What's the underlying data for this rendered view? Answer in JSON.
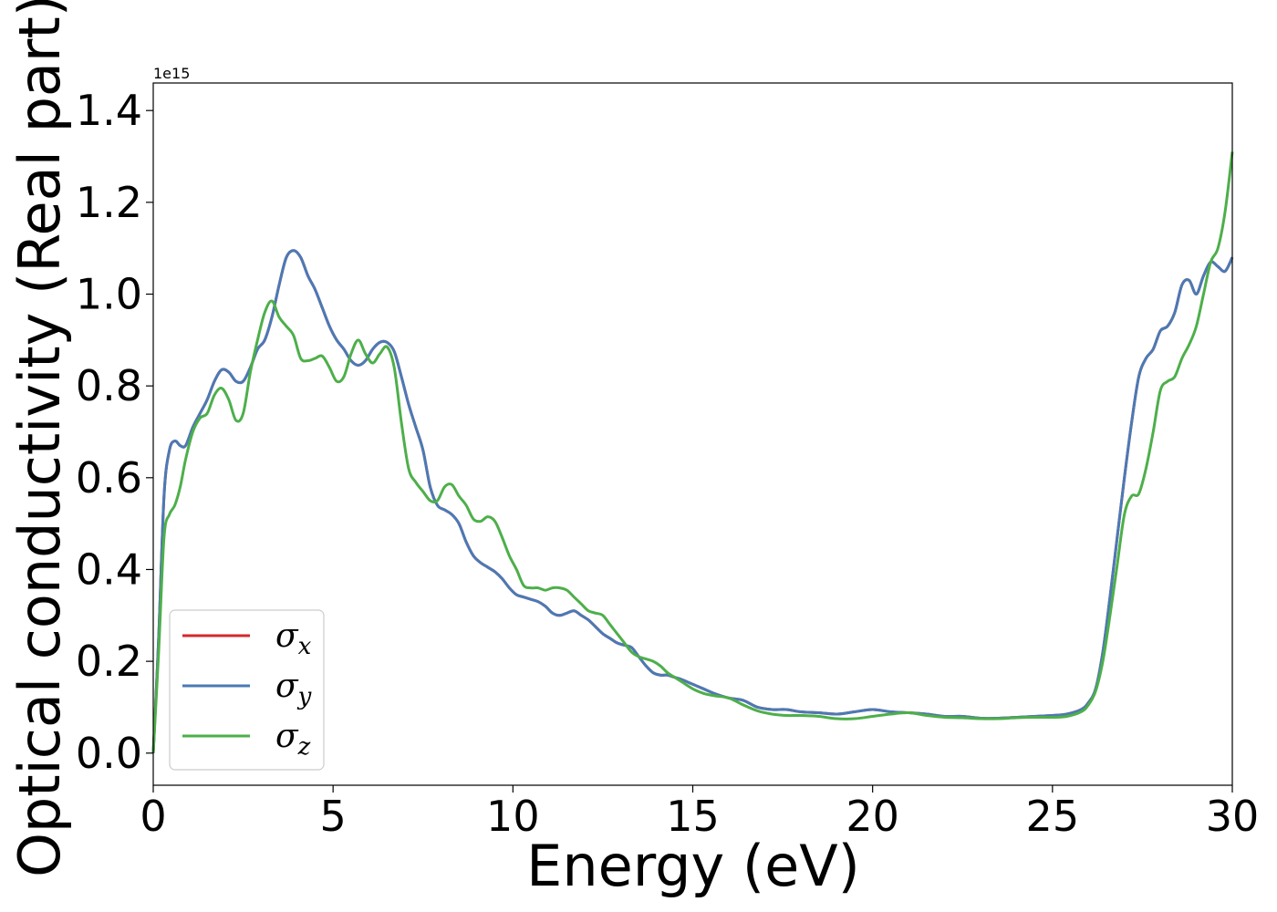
{
  "chart_data": {
    "type": "line",
    "xlabel": "Energy (eV)",
    "ylabel": "Optical conductivity (Real part)",
    "y_offset_label": "1e15",
    "y_scale_factor": 1000000000000000.0,
    "xlim": [
      0,
      30
    ],
    "ylim": [
      -0.07,
      1.46
    ],
    "x_ticks": [
      0,
      5,
      10,
      15,
      20,
      25,
      30
    ],
    "x_tick_labels": [
      "0",
      "5",
      "10",
      "15",
      "20",
      "25",
      "30"
    ],
    "y_ticks": [
      0.0,
      0.2,
      0.4,
      0.6,
      0.8,
      1.0,
      1.2,
      1.4
    ],
    "y_tick_labels": [
      "0.0",
      "0.2",
      "0.4",
      "0.6",
      "0.8",
      "1.0",
      "1.2",
      "1.4"
    ],
    "grid": false,
    "legend_position": "lower-left",
    "series": [
      {
        "name": "σx",
        "legend_symbol": "σ",
        "legend_subscript": "x",
        "color": "#d62728",
        "x": [
          0,
          0.15,
          0.3,
          0.45,
          0.6,
          0.75,
          0.9,
          1.1,
          1.3,
          1.5,
          1.7,
          1.9,
          2.1,
          2.3,
          2.5,
          2.7,
          2.9,
          3.1,
          3.3,
          3.5,
          3.7,
          3.9,
          4.1,
          4.3,
          4.5,
          4.7,
          4.9,
          5.1,
          5.3,
          5.5,
          5.7,
          5.9,
          6.1,
          6.3,
          6.5,
          6.7,
          6.9,
          7.1,
          7.3,
          7.5,
          7.7,
          7.9,
          8.1,
          8.3,
          8.5,
          8.7,
          8.9,
          9.1,
          9.3,
          9.5,
          9.7,
          9.9,
          10.1,
          10.3,
          10.5,
          10.7,
          10.9,
          11.1,
          11.3,
          11.5,
          11.7,
          11.9,
          12.1,
          12.3,
          12.5,
          12.7,
          12.9,
          13.1,
          13.3,
          13.5,
          13.7,
          13.9,
          14.1,
          14.3,
          14.5,
          14.7,
          15.0,
          15.3,
          15.6,
          16.0,
          16.4,
          16.8,
          17.2,
          17.6,
          18.0,
          18.5,
          19.0,
          19.5,
          20.0,
          20.5,
          21.0,
          21.5,
          22.0,
          22.5,
          23.0,
          23.5,
          24.0,
          24.5,
          25.0,
          25.4,
          25.8,
          26.0,
          26.2,
          26.4,
          26.6,
          26.8,
          27.0,
          27.2,
          27.4,
          27.6,
          27.8,
          28.0,
          28.2,
          28.4,
          28.6,
          28.8,
          29.0,
          29.2,
          29.4,
          29.6,
          29.8,
          30.0
        ],
        "y": [
          0.0,
          0.25,
          0.56,
          0.66,
          0.68,
          0.67,
          0.67,
          0.71,
          0.74,
          0.77,
          0.81,
          0.835,
          0.83,
          0.81,
          0.81,
          0.84,
          0.88,
          0.9,
          0.95,
          1.02,
          1.08,
          1.095,
          1.08,
          1.04,
          1.01,
          0.97,
          0.93,
          0.9,
          0.88,
          0.855,
          0.845,
          0.855,
          0.88,
          0.895,
          0.895,
          0.875,
          0.82,
          0.76,
          0.71,
          0.66,
          0.58,
          0.54,
          0.53,
          0.52,
          0.5,
          0.46,
          0.43,
          0.415,
          0.405,
          0.395,
          0.38,
          0.36,
          0.345,
          0.34,
          0.335,
          0.33,
          0.32,
          0.305,
          0.3,
          0.305,
          0.31,
          0.3,
          0.29,
          0.275,
          0.26,
          0.25,
          0.24,
          0.235,
          0.23,
          0.21,
          0.19,
          0.175,
          0.17,
          0.17,
          0.165,
          0.16,
          0.15,
          0.14,
          0.13,
          0.12,
          0.115,
          0.1,
          0.095,
          0.095,
          0.09,
          0.088,
          0.085,
          0.09,
          0.095,
          0.09,
          0.088,
          0.085,
          0.08,
          0.08,
          0.076,
          0.076,
          0.078,
          0.08,
          0.082,
          0.085,
          0.095,
          0.11,
          0.14,
          0.22,
          0.34,
          0.47,
          0.6,
          0.72,
          0.82,
          0.86,
          0.88,
          0.92,
          0.93,
          0.96,
          1.02,
          1.03,
          1.0,
          1.04,
          1.07,
          1.06,
          1.05,
          1.08
        ]
      },
      {
        "name": "σy",
        "legend_symbol": "σ",
        "legend_subscript": "y",
        "color": "#4a7ab5",
        "x": [
          0,
          0.15,
          0.3,
          0.45,
          0.6,
          0.75,
          0.9,
          1.1,
          1.3,
          1.5,
          1.7,
          1.9,
          2.1,
          2.3,
          2.5,
          2.7,
          2.9,
          3.1,
          3.3,
          3.5,
          3.7,
          3.9,
          4.1,
          4.3,
          4.5,
          4.7,
          4.9,
          5.1,
          5.3,
          5.5,
          5.7,
          5.9,
          6.1,
          6.3,
          6.5,
          6.7,
          6.9,
          7.1,
          7.3,
          7.5,
          7.7,
          7.9,
          8.1,
          8.3,
          8.5,
          8.7,
          8.9,
          9.1,
          9.3,
          9.5,
          9.7,
          9.9,
          10.1,
          10.3,
          10.5,
          10.7,
          10.9,
          11.1,
          11.3,
          11.5,
          11.7,
          11.9,
          12.1,
          12.3,
          12.5,
          12.7,
          12.9,
          13.1,
          13.3,
          13.5,
          13.7,
          13.9,
          14.1,
          14.3,
          14.5,
          14.7,
          15.0,
          15.3,
          15.6,
          16.0,
          16.4,
          16.8,
          17.2,
          17.6,
          18.0,
          18.5,
          19.0,
          19.5,
          20.0,
          20.5,
          21.0,
          21.5,
          22.0,
          22.5,
          23.0,
          23.5,
          24.0,
          24.5,
          25.0,
          25.4,
          25.8,
          26.0,
          26.2,
          26.4,
          26.6,
          26.8,
          27.0,
          27.2,
          27.4,
          27.6,
          27.8,
          28.0,
          28.2,
          28.4,
          28.6,
          28.8,
          29.0,
          29.2,
          29.4,
          29.6,
          29.8,
          30.0
        ],
        "y": [
          0.0,
          0.25,
          0.56,
          0.66,
          0.68,
          0.67,
          0.67,
          0.71,
          0.74,
          0.77,
          0.81,
          0.835,
          0.83,
          0.81,
          0.81,
          0.84,
          0.88,
          0.9,
          0.95,
          1.02,
          1.08,
          1.095,
          1.08,
          1.04,
          1.01,
          0.97,
          0.93,
          0.9,
          0.88,
          0.855,
          0.845,
          0.855,
          0.88,
          0.895,
          0.895,
          0.875,
          0.82,
          0.76,
          0.71,
          0.66,
          0.58,
          0.54,
          0.53,
          0.52,
          0.5,
          0.46,
          0.43,
          0.415,
          0.405,
          0.395,
          0.38,
          0.36,
          0.345,
          0.34,
          0.335,
          0.33,
          0.32,
          0.305,
          0.3,
          0.305,
          0.31,
          0.3,
          0.29,
          0.275,
          0.26,
          0.25,
          0.24,
          0.235,
          0.23,
          0.21,
          0.19,
          0.175,
          0.17,
          0.17,
          0.165,
          0.16,
          0.15,
          0.14,
          0.13,
          0.12,
          0.115,
          0.1,
          0.095,
          0.095,
          0.09,
          0.088,
          0.085,
          0.09,
          0.095,
          0.09,
          0.088,
          0.085,
          0.08,
          0.08,
          0.076,
          0.076,
          0.078,
          0.08,
          0.082,
          0.085,
          0.095,
          0.11,
          0.14,
          0.22,
          0.34,
          0.47,
          0.6,
          0.72,
          0.82,
          0.86,
          0.88,
          0.92,
          0.93,
          0.96,
          1.02,
          1.03,
          1.0,
          1.04,
          1.07,
          1.06,
          1.05,
          1.08
        ]
      },
      {
        "name": "σz",
        "legend_symbol": "σ",
        "legend_subscript": "z",
        "color": "#4daf4a",
        "x": [
          0,
          0.15,
          0.3,
          0.45,
          0.6,
          0.75,
          0.9,
          1.1,
          1.3,
          1.5,
          1.7,
          1.9,
          2.1,
          2.3,
          2.5,
          2.7,
          2.9,
          3.1,
          3.3,
          3.5,
          3.7,
          3.9,
          4.1,
          4.3,
          4.5,
          4.7,
          4.9,
          5.1,
          5.3,
          5.5,
          5.7,
          5.9,
          6.1,
          6.3,
          6.5,
          6.7,
          6.9,
          7.1,
          7.3,
          7.5,
          7.7,
          7.9,
          8.1,
          8.3,
          8.5,
          8.7,
          8.9,
          9.1,
          9.3,
          9.5,
          9.7,
          9.9,
          10.1,
          10.3,
          10.5,
          10.7,
          10.9,
          11.1,
          11.3,
          11.5,
          11.7,
          11.9,
          12.1,
          12.3,
          12.5,
          12.7,
          12.9,
          13.1,
          13.3,
          13.5,
          13.7,
          13.9,
          14.1,
          14.3,
          14.5,
          14.7,
          15.0,
          15.3,
          15.6,
          16.0,
          16.4,
          16.8,
          17.2,
          17.6,
          18.0,
          18.5,
          19.0,
          19.5,
          20.0,
          20.5,
          21.0,
          21.5,
          22.0,
          22.5,
          23.0,
          23.5,
          24.0,
          24.5,
          25.0,
          25.4,
          25.8,
          26.0,
          26.2,
          26.4,
          26.6,
          26.8,
          27.0,
          27.2,
          27.4,
          27.6,
          27.8,
          28.0,
          28.2,
          28.4,
          28.6,
          28.8,
          29.0,
          29.2,
          29.4,
          29.6,
          29.8,
          30.0
        ],
        "y": [
          0.0,
          0.22,
          0.47,
          0.52,
          0.54,
          0.58,
          0.64,
          0.7,
          0.73,
          0.74,
          0.78,
          0.795,
          0.77,
          0.725,
          0.74,
          0.83,
          0.9,
          0.96,
          0.985,
          0.95,
          0.93,
          0.91,
          0.86,
          0.855,
          0.86,
          0.865,
          0.84,
          0.81,
          0.82,
          0.87,
          0.9,
          0.87,
          0.85,
          0.87,
          0.885,
          0.84,
          0.72,
          0.62,
          0.59,
          0.57,
          0.55,
          0.55,
          0.58,
          0.585,
          0.56,
          0.54,
          0.51,
          0.505,
          0.515,
          0.505,
          0.47,
          0.43,
          0.4,
          0.365,
          0.36,
          0.36,
          0.355,
          0.36,
          0.36,
          0.355,
          0.34,
          0.325,
          0.31,
          0.305,
          0.3,
          0.28,
          0.26,
          0.24,
          0.22,
          0.21,
          0.205,
          0.2,
          0.19,
          0.175,
          0.165,
          0.155,
          0.14,
          0.13,
          0.125,
          0.12,
          0.105,
          0.092,
          0.085,
          0.082,
          0.082,
          0.08,
          0.075,
          0.075,
          0.08,
          0.085,
          0.088,
          0.082,
          0.078,
          0.077,
          0.075,
          0.075,
          0.077,
          0.078,
          0.078,
          0.08,
          0.09,
          0.105,
          0.135,
          0.2,
          0.3,
          0.41,
          0.52,
          0.56,
          0.565,
          0.62,
          0.7,
          0.79,
          0.81,
          0.82,
          0.86,
          0.89,
          0.93,
          1.0,
          1.07,
          1.1,
          1.18,
          1.31
        ]
      }
    ]
  }
}
